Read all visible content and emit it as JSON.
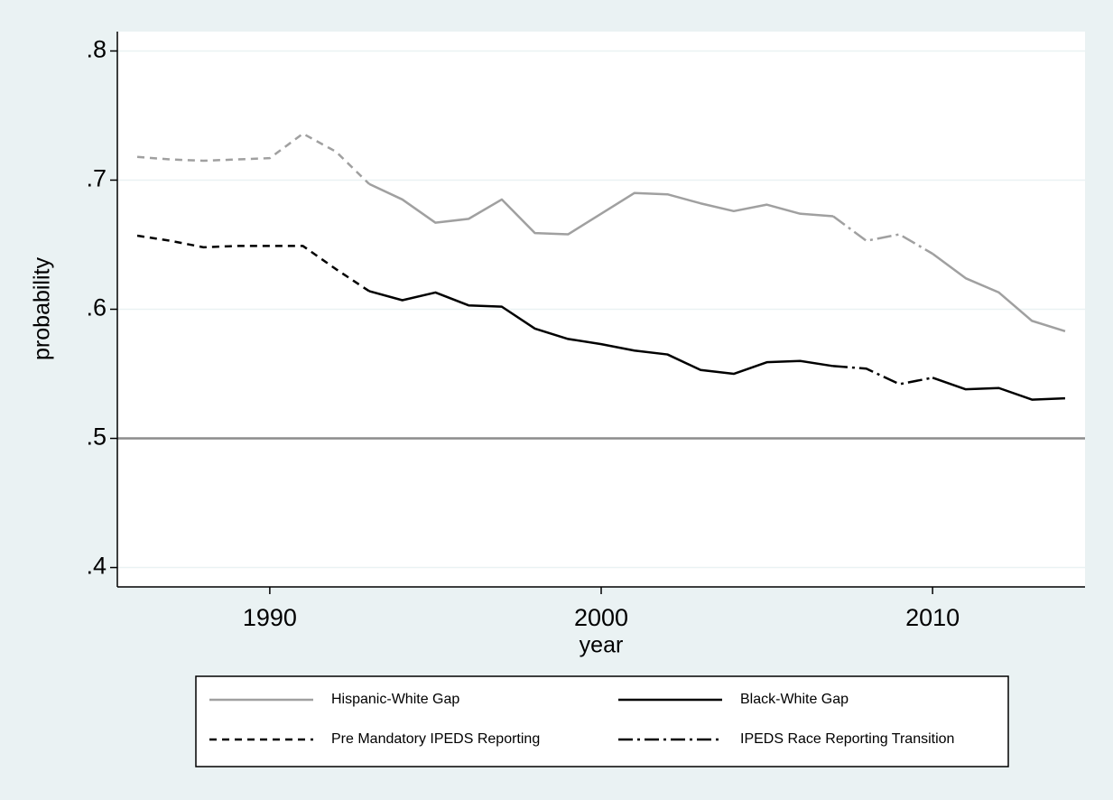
{
  "chart_data": {
    "type": "line",
    "x": [
      1986,
      1987,
      1988,
      1989,
      1990,
      1991,
      1992,
      1993,
      1994,
      1995,
      1996,
      1997,
      1998,
      1999,
      2000,
      2001,
      2002,
      2003,
      2004,
      2005,
      2006,
      2007,
      2008,
      2009,
      2010,
      2011,
      2012,
      2013,
      2014
    ],
    "series": [
      {
        "name": "Hispanic-White Gap",
        "color": "#a0a0a0",
        "values": [
          0.718,
          0.716,
          0.715,
          0.716,
          0.717,
          0.736,
          0.722,
          0.697,
          0.685,
          0.667,
          0.67,
          0.685,
          0.659,
          0.658,
          0.674,
          0.69,
          0.689,
          0.682,
          0.676,
          0.681,
          0.674,
          0.672,
          0.653,
          0.658,
          0.643,
          0.624,
          0.613,
          0.591,
          0.583
        ]
      },
      {
        "name": "Black-White Gap",
        "color": "#000000",
        "values": [
          0.657,
          0.653,
          0.648,
          0.649,
          0.649,
          0.649,
          0.631,
          0.614,
          0.607,
          0.613,
          0.603,
          0.602,
          0.585,
          0.577,
          0.573,
          0.568,
          0.565,
          0.553,
          0.55,
          0.559,
          0.56,
          0.556,
          0.554,
          0.542,
          0.547,
          0.538,
          0.539,
          0.53,
          0.531
        ]
      }
    ],
    "periods": [
      {
        "name": "Pre Mandatory IPEDS Reporting",
        "start": 1986,
        "end": 1993,
        "dash": "dashed"
      },
      {
        "name": "IPEDS Race Reporting Transition",
        "start": 2007,
        "end": 2010,
        "dash": "dashdot"
      }
    ],
    "xlabel": "year",
    "ylabel": "probability",
    "xlim": [
      1985.4,
      2014.6
    ],
    "xticks": [
      1990,
      2000,
      2010
    ],
    "ylim": [
      0.385,
      0.815
    ],
    "yticks": [
      {
        "value": 0.4,
        "label": ".4"
      },
      {
        "value": 0.5,
        "label": ".5"
      },
      {
        "value": 0.6,
        "label": ".6"
      },
      {
        "value": 0.7,
        "label": ".7"
      },
      {
        "value": 0.8,
        "label": ".8"
      }
    ],
    "yline": 0.5,
    "grid": true,
    "legend": "bottom"
  }
}
